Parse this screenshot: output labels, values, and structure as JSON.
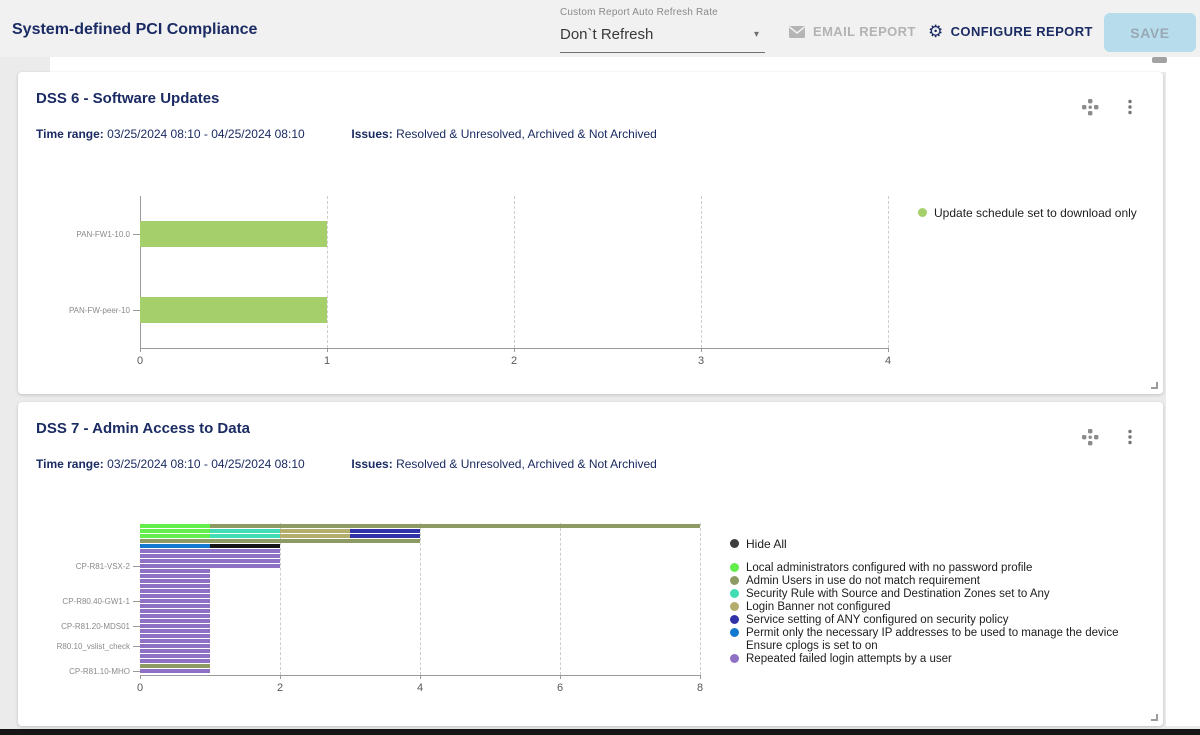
{
  "header": {
    "title": "System-defined PCI Compliance",
    "refresh_rate": {
      "label": "Custom Report Auto Refresh Rate",
      "value": "Don`t Refresh"
    },
    "email_report_label": "EMAIL REPORT",
    "configure_report_label": "CONFIGURE REPORT",
    "save_label": "SAVE",
    "gear_glyph": "⚙",
    "caret_glyph": "▾"
  },
  "colors": {
    "title_navy": "#1b2b63",
    "save_bg": "#b7dcec",
    "panel_bg": "#ffffff",
    "page_bg": "#ebebeb"
  },
  "panels": [
    {
      "title": "DSS 6 - Software Updates",
      "time_range_label": "Time range:",
      "time_range_value": "03/25/2024 08:10 - 04/25/2024 08:10",
      "issues_label": "Issues:",
      "issues_value": "Resolved & Unresolved, Archived & Not Archived"
    },
    {
      "title": "DSS 7 - Admin Access to Data",
      "time_range_label": "Time range:",
      "time_range_value": "03/25/2024 08:10 - 04/25/2024 08:10",
      "issues_label": "Issues:",
      "issues_value": "Resolved & Unresolved, Archived & Not Archived"
    }
  ],
  "chart_data": [
    {
      "type": "bar",
      "orientation": "horizontal",
      "title": "DSS 6 - Software Updates",
      "categories": [
        "PAN-FW1-10.0",
        "PAN-FW-peer-10"
      ],
      "values": [
        1,
        1
      ],
      "series_name": "Update schedule set to download only",
      "bar_color": "#a4cf6a",
      "xlim": [
        0,
        4
      ],
      "xticks": [
        0,
        1,
        2,
        3,
        4
      ],
      "grid": true,
      "legend_position": "right",
      "legend": [
        {
          "label": "Update schedule set to download only",
          "color": "#a4cf6a"
        }
      ]
    },
    {
      "type": "bar",
      "orientation": "horizontal-stacked-rows",
      "title": "DSS 7 - Admin Access to Data",
      "xlim": [
        0,
        8
      ],
      "xticks": [
        0,
        2,
        4,
        6,
        8
      ],
      "grid": true,
      "palette": {
        "green": "#63ee4b",
        "olive": "#8e9a63",
        "teal": "#40ddb4",
        "khaki": "#b3ae6b",
        "navy": "#3132a8",
        "blue": "#1379d0",
        "black": "#161616",
        "purple": "#8e70c5"
      },
      "rows": [
        {
          "repeat": 1,
          "segments": [
            [
              "green",
              1
            ],
            [
              "olive",
              7
            ]
          ]
        },
        {
          "repeat": 2,
          "segments": [
            [
              "green",
              1
            ],
            [
              "teal",
              1
            ],
            [
              "khaki",
              1
            ],
            [
              "navy",
              1
            ]
          ]
        },
        {
          "repeat": 1,
          "segments": [
            [
              "olive",
              4
            ]
          ]
        },
        {
          "repeat": 1,
          "segments": [
            [
              "blue",
              1
            ],
            [
              "black",
              1
            ]
          ]
        },
        {
          "repeat": 4,
          "segments": [
            [
              "purple",
              2
            ]
          ]
        },
        {
          "repeat": 19,
          "segments": [
            [
              "purple",
              1
            ]
          ]
        },
        {
          "repeat": 1,
          "segments": [
            [
              "olive",
              1
            ]
          ]
        },
        {
          "repeat": 1,
          "segments": [
            [
              "purple",
              1
            ]
          ]
        }
      ],
      "y_labels": [
        {
          "text": "CP-R81-VSX-2",
          "row": 9
        },
        {
          "text": "CP-R80.40-GW1-1",
          "row": 16
        },
        {
          "text": "CP-R81.20-MDS01",
          "row": 21
        },
        {
          "text": "R80.10_vslist_check",
          "row": 25
        },
        {
          "text": "CP-R81.10-MHO",
          "row": 30
        }
      ],
      "legend_hide_all": {
        "label": "Hide All",
        "color": "#3d3d3d"
      },
      "legend": [
        {
          "label": "Local administrators configured with no password profile",
          "color_key": "green"
        },
        {
          "label": "Admin Users in use do not match requirement",
          "color_key": "olive"
        },
        {
          "label": "Security Rule with Source and Destination Zones set to Any",
          "color_key": "teal"
        },
        {
          "label": "Login Banner not configured",
          "color_key": "khaki"
        },
        {
          "label": "Service setting of ANY configured on security policy",
          "color_key": "navy"
        },
        {
          "label": "Permit only the necessary IP addresses to be used to manage the device",
          "color_key": "blue"
        },
        {
          "label": "Ensure cplogs is set to on",
          "color_key": null
        },
        {
          "label": "Repeated failed login attempts by a user",
          "color_key": "purple"
        }
      ]
    }
  ]
}
